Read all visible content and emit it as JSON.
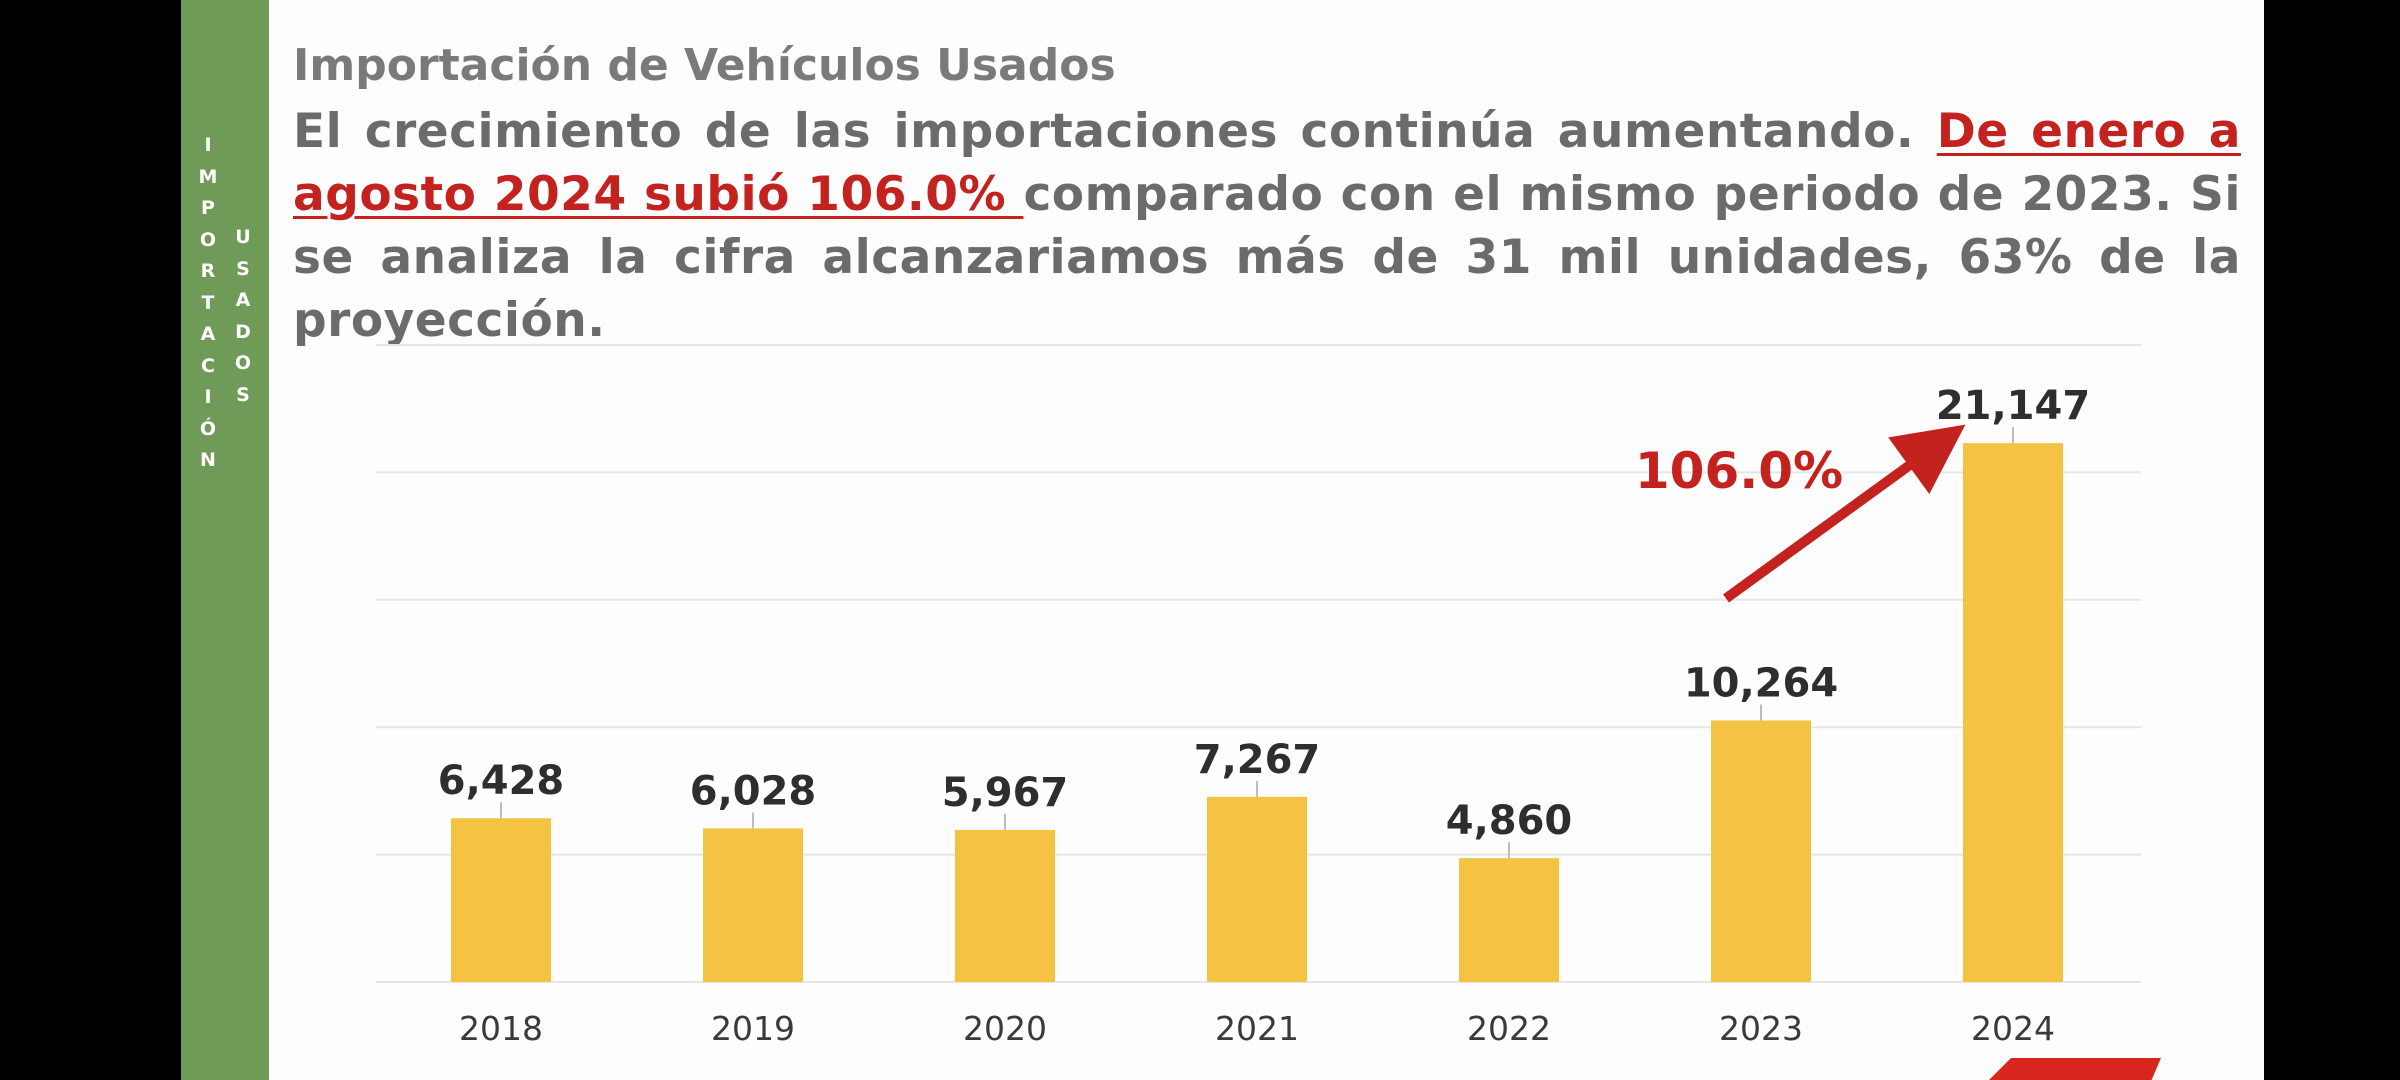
{
  "sidebar": {
    "label_1": "IMPORTACIÓN",
    "label_2": "USADOS"
  },
  "header": {
    "title": "Importación de Vehículos Usados",
    "para_1": "El crecimiento de las importaciones continúa aumentando. ",
    "para_highlight": "De enero a agosto 2024 subió 106.0% ",
    "para_2": "comparado con el mismo periodo de 2023. Si se analiza la cifra alcanzariamos más de 31 mil unidades, 63% de la proyección."
  },
  "chart_data": {
    "type": "bar",
    "categories": [
      "2018",
      "2019",
      "2020",
      "2021",
      "2022",
      "2023",
      "2024"
    ],
    "values": [
      6428,
      6028,
      5967,
      7267,
      4860,
      10264,
      21147
    ],
    "value_labels": [
      "6,428",
      "6,028",
      "5,967",
      "7,267",
      "4,860",
      "10,264",
      "21,147"
    ],
    "ylim": [
      0,
      25000
    ],
    "grid": true,
    "annotation": "106.0%",
    "colors": {
      "bar": "#f5c343",
      "arrow": "#c3221f",
      "grid": "#e6e6e6"
    }
  }
}
